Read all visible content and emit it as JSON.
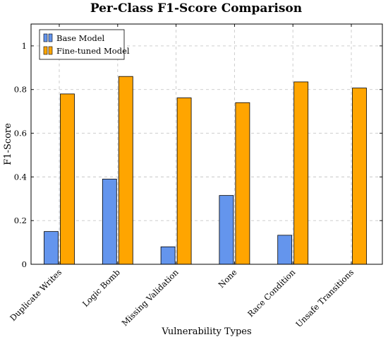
{
  "chart_data": {
    "type": "bar",
    "title": "Per-Class F1-Score Comparison",
    "xlabel": "Vulnerability Types",
    "ylabel": "F1-Score",
    "categories": [
      "Duplicate Writes",
      "Logic Bomb",
      "Missing Validation",
      "None",
      "Race Condition",
      "Unsafe Transitions"
    ],
    "series": [
      {
        "name": "Base Model",
        "color": "#6495ed",
        "values": [
          0.15,
          0.39,
          0.08,
          0.315,
          0.133,
          0.0
        ]
      },
      {
        "name": "Fine-tuned Model",
        "color": "#ffa500",
        "values": [
          0.78,
          0.86,
          0.762,
          0.74,
          0.835,
          0.807
        ]
      }
    ],
    "ylim": [
      0,
      1.1
    ],
    "yticks": [
      0,
      0.2,
      0.4,
      0.6,
      0.8,
      1
    ],
    "yticklabels": [
      "0",
      "0.2",
      "0.4",
      "0.6",
      "0.8",
      "1"
    ],
    "grid": true,
    "legend_position": "top-left"
  }
}
